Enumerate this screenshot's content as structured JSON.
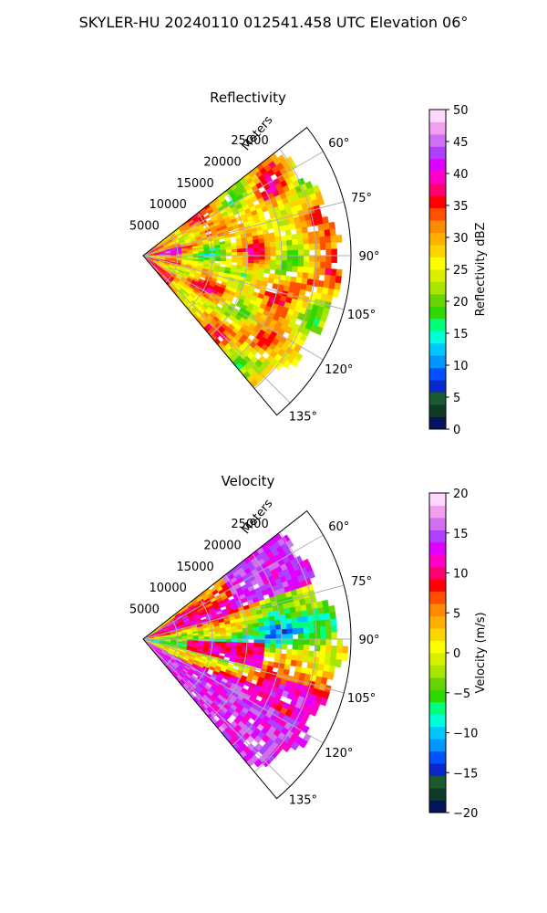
{
  "figure": {
    "title": "SKYLER-HU  20240110  012541.458 UTC Elevation 06°"
  },
  "chart_data": [
    {
      "type": "heatmap",
      "projection": "polar-sector",
      "title": "Reflectivity",
      "radial_label": "Meters",
      "radial_ticks": [
        "5000",
        "10000",
        "15000",
        "20000",
        "25000"
      ],
      "radial_tick_values": [
        5000,
        10000,
        15000,
        20000,
        25000
      ],
      "radial_range": [
        0,
        30000
      ],
      "angle_ticks": [
        "60°",
        "75°",
        "90°",
        "105°",
        "120°",
        "135°"
      ],
      "angle_tick_values": [
        60,
        75,
        90,
        105,
        120,
        135
      ],
      "angle_range": [
        52,
        140
      ],
      "grid": true,
      "colorbar": {
        "label": "Reflectivity dBZ",
        "ticks": [
          "0",
          "5",
          "10",
          "15",
          "20",
          "25",
          "30",
          "35",
          "40",
          "45",
          "50"
        ],
        "range": [
          0,
          50
        ],
        "colors": [
          "#04145a",
          "#0f3a28",
          "#1a5a30",
          "#0a28c8",
          "#0050ff",
          "#0096ff",
          "#00c8ff",
          "#00ffd8",
          "#00ff7a",
          "#2ed800",
          "#6ad400",
          "#a8e600",
          "#d8f000",
          "#ffff00",
          "#ffd400",
          "#ffb000",
          "#ff8a00",
          "#ff5000",
          "#ff0000",
          "#ff0070",
          "#ff00c8",
          "#e000ff",
          "#b040ff",
          "#d070f0",
          "#f0a0f0",
          "#ffd8ff"
        ],
        "value_range": [
          0,
          50
        ]
      },
      "field_summary": {
        "dominant_values": [
          25,
          35
        ],
        "min_observed": 15,
        "max_observed": 45
      }
    },
    {
      "type": "heatmap",
      "projection": "polar-sector",
      "title": "Velocity",
      "radial_label": "Meters",
      "radial_ticks": [
        "5000",
        "10000",
        "15000",
        "20000",
        "25000"
      ],
      "radial_tick_values": [
        5000,
        10000,
        15000,
        20000,
        25000
      ],
      "radial_range": [
        0,
        30000
      ],
      "angle_ticks": [
        "60°",
        "75°",
        "90°",
        "105°",
        "120°",
        "135°"
      ],
      "angle_tick_values": [
        60,
        75,
        90,
        105,
        120,
        135
      ],
      "angle_range": [
        52,
        140
      ],
      "grid": true,
      "colorbar": {
        "label": "Velocity (m/s)",
        "ticks": [
          "−20",
          "−15",
          "−10",
          "−5",
          "0",
          "5",
          "10",
          "15",
          "20"
        ],
        "range": [
          -20,
          20
        ],
        "colors": [
          "#04145a",
          "#0f3a28",
          "#1a5a30",
          "#0a28c8",
          "#0050ff",
          "#0096ff",
          "#00c8ff",
          "#00ffd8",
          "#00ff7a",
          "#2ed800",
          "#6ad400",
          "#a8e600",
          "#d8f000",
          "#ffff00",
          "#ffd400",
          "#ffb000",
          "#ff8a00",
          "#ff5000",
          "#ff0000",
          "#ff0070",
          "#ff00c8",
          "#e000ff",
          "#b040ff",
          "#d070f0",
          "#f0a0f0",
          "#ffd8ff"
        ],
        "value_range": [
          -20,
          20
        ]
      },
      "field_summary": {
        "dominant_values": [
          -10,
          0,
          15
        ],
        "min_observed": -12,
        "max_observed": 18
      }
    }
  ]
}
